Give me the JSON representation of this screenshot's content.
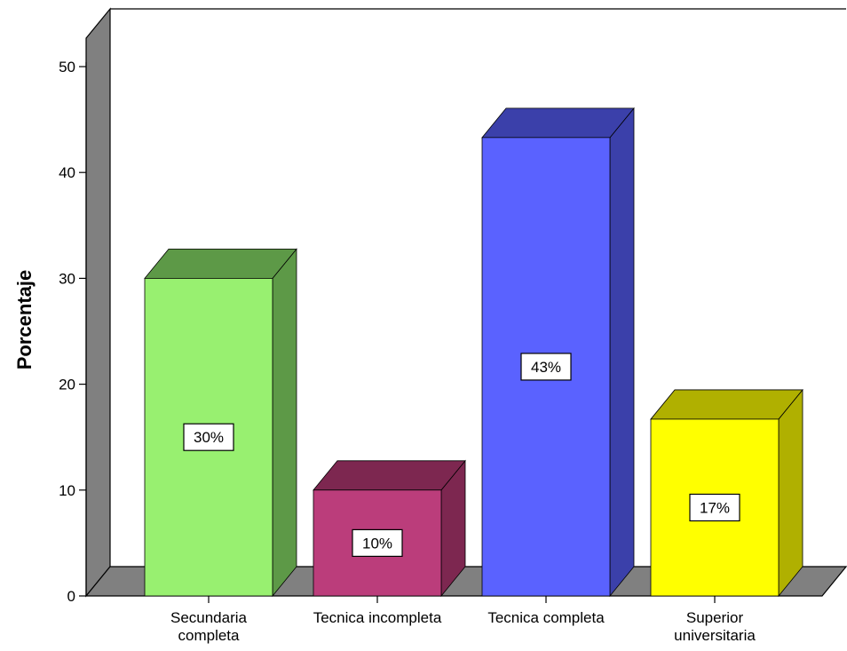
{
  "chart_data": {
    "type": "bar",
    "title": "",
    "xlabel": "",
    "ylabel": "Porcentaje",
    "ylim": [
      0,
      50
    ],
    "yticks": [
      0,
      10,
      20,
      30,
      40,
      50
    ],
    "categories": [
      [
        "Secundaria",
        "completa"
      ],
      [
        "Tecnica incompleta"
      ],
      [
        "Tecnica completa"
      ],
      [
        "Superior",
        "universitaria"
      ]
    ],
    "values": [
      30,
      10,
      43.3,
      16.7
    ],
    "data_labels": [
      "30%",
      "10%",
      "43%",
      "17%"
    ],
    "colors": {
      "front": [
        "#98f070",
        "#bb3d7b",
        "#5a62ff",
        "#ffff00"
      ],
      "top": [
        "#5d9947",
        "#7d2750",
        "#3b40aa",
        "#b0b000"
      ],
      "side": [
        "#5d9947",
        "#7d2750",
        "#3b40aa",
        "#b0b000"
      ],
      "wall": "#808080",
      "floor": "#808080"
    },
    "style": "3d",
    "grid": false,
    "legend": "none"
  }
}
